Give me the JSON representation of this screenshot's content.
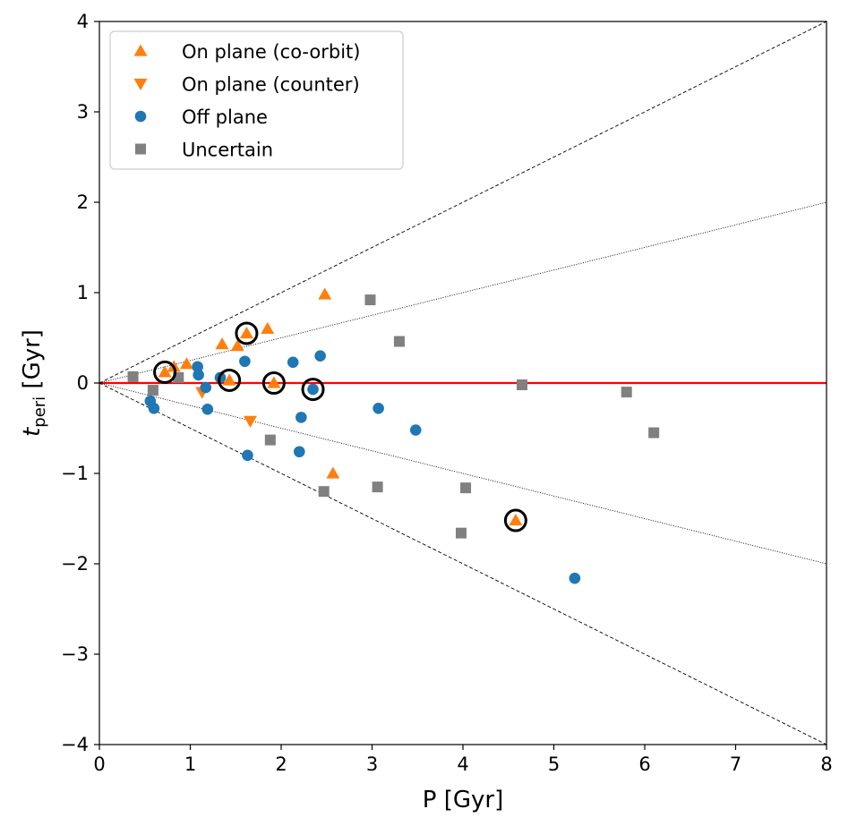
{
  "chart_data": {
    "type": "scatter",
    "xlabel": "P [Gyr]",
    "ylabel": {
      "main": "t",
      "sub": "peri",
      "unit": " [Gyr]"
    },
    "xlim": [
      0,
      8
    ],
    "ylim": [
      -4,
      4
    ],
    "x_ticks": [
      {
        "value": 0,
        "label": "0"
      },
      {
        "value": 1,
        "label": "1"
      },
      {
        "value": 2,
        "label": "2"
      },
      {
        "value": 3,
        "label": "3"
      },
      {
        "value": 4,
        "label": "4"
      },
      {
        "value": 5,
        "label": "5"
      },
      {
        "value": 6,
        "label": "6"
      },
      {
        "value": 7,
        "label": "7"
      },
      {
        "value": 8,
        "label": "8"
      }
    ],
    "y_ticks": [
      {
        "value": 4,
        "label": "4"
      },
      {
        "value": 3,
        "label": "3"
      },
      {
        "value": 2,
        "label": "2"
      },
      {
        "value": 1,
        "label": "1"
      },
      {
        "value": 0,
        "label": "0"
      },
      {
        "value": -1,
        "label": "−1"
      },
      {
        "value": -2,
        "label": "−2"
      },
      {
        "value": -3,
        "label": "−3"
      },
      {
        "value": -4,
        "label": "−4"
      }
    ],
    "reference_lines": [
      {
        "name": "zero-line",
        "from": [
          0,
          0
        ],
        "to": [
          8,
          0
        ],
        "color": "#ff0000",
        "style": "solid"
      },
      {
        "name": "dashed-line-upper",
        "from": [
          0,
          0
        ],
        "to": [
          8,
          4
        ],
        "color": "#000000",
        "style": "dashed"
      },
      {
        "name": "dashed-line-lower",
        "from": [
          0,
          0
        ],
        "to": [
          8,
          -4
        ],
        "color": "#000000",
        "style": "dashed"
      },
      {
        "name": "dotted-line-upper",
        "from": [
          0,
          0
        ],
        "to": [
          8,
          2
        ],
        "color": "#000000",
        "style": "dotted"
      },
      {
        "name": "dotted-line-lower",
        "from": [
          0,
          0
        ],
        "to": [
          8,
          -2
        ],
        "color": "#000000",
        "style": "dotted"
      }
    ],
    "series": [
      {
        "name": "On plane (co-orbit)",
        "marker": "triangle-up",
        "color": "#ff7f0e",
        "x": [
          0.72,
          0.82,
          0.96,
          1.35,
          1.43,
          1.52,
          1.62,
          1.85,
          1.92,
          2.48,
          2.57,
          4.58
        ],
        "y": [
          0.12,
          0.18,
          0.21,
          0.43,
          0.03,
          0.41,
          0.55,
          0.6,
          0.0,
          0.98,
          -1.0,
          -1.52
        ]
      },
      {
        "name": "On plane (counter)",
        "marker": "triangle-down",
        "color": "#ff7f0e",
        "x": [
          1.13,
          1.66
        ],
        "y": [
          -0.1,
          -0.42
        ]
      },
      {
        "name": "Off plane",
        "marker": "circle",
        "color": "#1f77b4",
        "x": [
          0.56,
          0.6,
          1.08,
          1.09,
          1.17,
          1.19,
          1.33,
          1.6,
          1.63,
          2.13,
          2.2,
          2.22,
          2.35,
          2.43,
          3.07,
          3.48,
          5.23
        ],
        "y": [
          -0.2,
          -0.28,
          0.18,
          0.09,
          -0.05,
          -0.29,
          0.06,
          0.24,
          -0.8,
          0.23,
          -0.76,
          -0.38,
          -0.07,
          0.3,
          -0.28,
          -0.52,
          -2.16
        ]
      },
      {
        "name": "Uncertain",
        "marker": "square",
        "color": "#808080",
        "x": [
          0.37,
          0.59,
          0.87,
          1.88,
          2.47,
          2.98,
          3.06,
          3.3,
          3.98,
          4.03,
          4.65,
          5.8,
          6.1
        ],
        "y": [
          0.07,
          -0.08,
          0.06,
          -0.63,
          -1.2,
          0.92,
          -1.15,
          0.46,
          -1.66,
          -1.16,
          -0.02,
          -0.1,
          -0.55
        ]
      }
    ],
    "highlighted": {
      "name": "black-ring",
      "x": [
        0.72,
        1.43,
        1.62,
        1.92,
        2.35,
        4.58
      ],
      "y": [
        0.12,
        0.03,
        0.55,
        0.0,
        -0.07,
        -1.52
      ]
    },
    "legend": {
      "position": "top-left"
    },
    "grid": false
  }
}
